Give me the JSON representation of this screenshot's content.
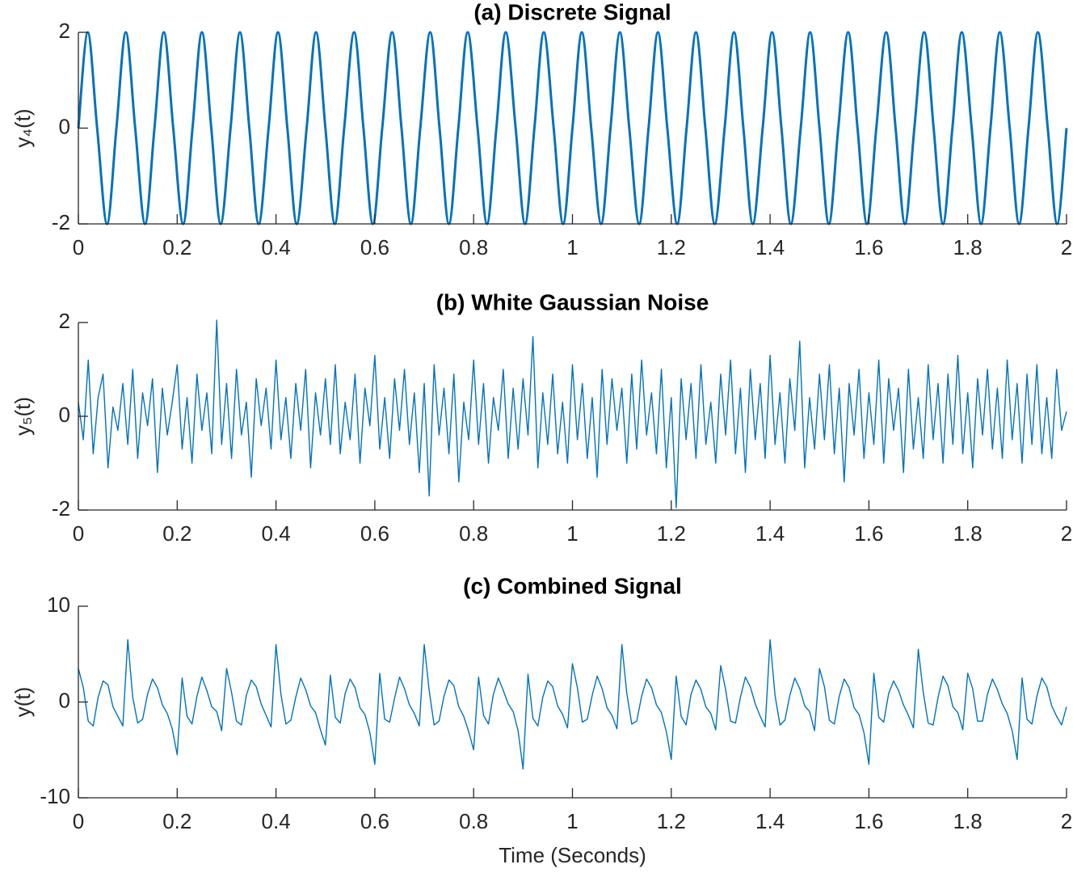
{
  "chart_data": [
    {
      "type": "line",
      "title": "(a) Discrete Signal",
      "ylabel": "y₄(t)",
      "color": "#0072bd",
      "line_shape": "spline",
      "xlim": [
        0,
        2
      ],
      "xticks": [
        0,
        0.2,
        0.4,
        0.6,
        0.8,
        1,
        1.2,
        1.4,
        1.6,
        1.8,
        2
      ],
      "ylim": [
        -2,
        2
      ],
      "yticks": [
        -2,
        0,
        2
      ],
      "x": [
        0,
        0.019,
        0.038,
        0.058,
        0.077,
        0.096,
        0.115,
        0.135,
        0.154,
        0.173,
        0.192,
        0.212,
        0.231,
        0.25,
        0.269,
        0.288,
        0.308,
        0.327,
        0.346,
        0.365,
        0.385,
        0.404,
        0.423,
        0.442,
        0.462,
        0.481,
        0.5,
        0.519,
        0.538,
        0.558,
        0.577,
        0.596,
        0.615,
        0.635,
        0.654,
        0.673,
        0.692,
        0.712,
        0.731,
        0.75,
        0.769,
        0.788,
        0.808,
        0.827,
        0.846,
        0.865,
        0.885,
        0.904,
        0.923,
        0.942,
        0.962,
        0.981,
        1,
        1.019,
        1.038,
        1.058,
        1.077,
        1.096,
        1.115,
        1.135,
        1.154,
        1.173,
        1.192,
        1.212,
        1.231,
        1.25,
        1.269,
        1.288,
        1.308,
        1.327,
        1.346,
        1.365,
        1.385,
        1.404,
        1.423,
        1.442,
        1.462,
        1.481,
        1.5,
        1.519,
        1.538,
        1.558,
        1.577,
        1.596,
        1.615,
        1.635,
        1.654,
        1.673,
        1.692,
        1.712,
        1.731,
        1.75,
        1.769,
        1.788,
        1.808,
        1.827,
        1.846,
        1.865,
        1.885,
        1.904,
        1.923,
        1.942,
        1.962,
        1.981,
        2
      ],
      "values": [
        0,
        2,
        0,
        -2,
        0,
        2,
        0,
        -2,
        0,
        2,
        0,
        -2,
        0,
        2,
        0,
        -2,
        0,
        2,
        0,
        -2,
        0,
        2,
        0,
        -2,
        0,
        2,
        0,
        -2,
        0,
        2,
        0,
        -2,
        0,
        2,
        0,
        -2,
        0,
        2,
        0,
        -2,
        0,
        2,
        0,
        -2,
        0,
        2,
        0,
        -2,
        0,
        2,
        0,
        -2,
        0,
        2,
        0,
        -2,
        0,
        2,
        0,
        -2,
        0,
        2,
        0,
        -2,
        0,
        2,
        0,
        -2,
        0,
        2,
        0,
        -2,
        0,
        2,
        0,
        -2,
        0,
        2,
        0,
        -2,
        0,
        2,
        0,
        -2,
        0,
        2,
        0,
        -2,
        0,
        2,
        0,
        -2,
        0,
        2,
        0,
        -2,
        0,
        2,
        0,
        -2,
        0,
        2,
        0,
        -2,
        0
      ]
    },
    {
      "type": "line",
      "title": "(b) White Gaussian Noise",
      "ylabel": "y₅(t)",
      "color": "#0072bd",
      "line_shape": "linear",
      "xlim": [
        0,
        2
      ],
      "xticks": [
        0,
        0.2,
        0.4,
        0.6,
        0.8,
        1,
        1.2,
        1.4,
        1.6,
        1.8,
        2
      ],
      "ylim": [
        -2,
        2
      ],
      "yticks": [
        -2,
        0,
        2
      ],
      "x": [
        0,
        0.01,
        0.02,
        0.03,
        0.04,
        0.05,
        0.06,
        0.07,
        0.08,
        0.09,
        0.1,
        0.11,
        0.12,
        0.13,
        0.14,
        0.15,
        0.16,
        0.17,
        0.18,
        0.19,
        0.2,
        0.21,
        0.22,
        0.23,
        0.24,
        0.25,
        0.26,
        0.27,
        0.28,
        0.29,
        0.3,
        0.31,
        0.32,
        0.33,
        0.34,
        0.35,
        0.36,
        0.37,
        0.38,
        0.39,
        0.4,
        0.41,
        0.42,
        0.43,
        0.44,
        0.45,
        0.46,
        0.47,
        0.48,
        0.49,
        0.5,
        0.51,
        0.52,
        0.53,
        0.54,
        0.55,
        0.56,
        0.57,
        0.58,
        0.59,
        0.6,
        0.61,
        0.62,
        0.63,
        0.64,
        0.65,
        0.66,
        0.67,
        0.68,
        0.69,
        0.7,
        0.71,
        0.72,
        0.73,
        0.74,
        0.75,
        0.76,
        0.77,
        0.78,
        0.79,
        0.8,
        0.81,
        0.82,
        0.83,
        0.84,
        0.85,
        0.86,
        0.87,
        0.88,
        0.89,
        0.9,
        0.91,
        0.92,
        0.93,
        0.94,
        0.95,
        0.96,
        0.97,
        0.98,
        0.99,
        1,
        1.01,
        1.02,
        1.03,
        1.04,
        1.05,
        1.06,
        1.07,
        1.08,
        1.09,
        1.1,
        1.11,
        1.12,
        1.13,
        1.14,
        1.15,
        1.16,
        1.17,
        1.18,
        1.19,
        1.2,
        1.21,
        1.22,
        1.23,
        1.24,
        1.25,
        1.26,
        1.27,
        1.28,
        1.29,
        1.3,
        1.31,
        1.32,
        1.33,
        1.34,
        1.35,
        1.36,
        1.37,
        1.38,
        1.39,
        1.4,
        1.41,
        1.42,
        1.43,
        1.44,
        1.45,
        1.46,
        1.47,
        1.48,
        1.49,
        1.5,
        1.51,
        1.52,
        1.53,
        1.54,
        1.55,
        1.56,
        1.57,
        1.58,
        1.59,
        1.6,
        1.61,
        1.62,
        1.63,
        1.64,
        1.65,
        1.66,
        1.67,
        1.68,
        1.69,
        1.7,
        1.71,
        1.72,
        1.73,
        1.74,
        1.75,
        1.76,
        1.77,
        1.78,
        1.79,
        1.8,
        1.81,
        1.82,
        1.83,
        1.84,
        1.85,
        1.86,
        1.87,
        1.88,
        1.89,
        1.9,
        1.91,
        1.92,
        1.93,
        1.94,
        1.95,
        1.96,
        1.97,
        1.98,
        1.99,
        2
      ],
      "values": [
        0.3,
        -0.5,
        1.2,
        -0.8,
        0.4,
        0.9,
        -1.1,
        0.2,
        -0.3,
        0.7,
        -0.6,
        1.0,
        -0.9,
        0.5,
        -0.2,
        0.8,
        -1.2,
        0.6,
        -0.4,
        0.3,
        1.1,
        -0.7,
        0.4,
        -1.0,
        0.9,
        -0.3,
        0.5,
        -0.8,
        2.05,
        -0.6,
        0.7,
        -0.9,
        1.0,
        -0.4,
        0.3,
        -1.3,
        0.8,
        -0.2,
        0.6,
        -0.7,
        1.2,
        -0.5,
        0.4,
        -0.9,
        0.7,
        -0.3,
        1.0,
        -1.1,
        0.5,
        -0.4,
        0.8,
        -0.6,
        1.1,
        -0.8,
        0.3,
        -0.5,
        0.9,
        -1.0,
        0.6,
        -0.2,
        1.3,
        -0.7,
        0.4,
        -0.9,
        0.8,
        -0.3,
        1.0,
        -0.6,
        0.5,
        -1.2,
        0.7,
        -1.7,
        1.1,
        -0.4,
        0.6,
        -0.8,
        0.9,
        -1.4,
        0.3,
        -0.5,
        1.2,
        -0.6,
        0.7,
        -1.0,
        0.4,
        -0.3,
        1.0,
        -0.9,
        0.6,
        -0.7,
        0.8,
        -0.4,
        1.7,
        -1.1,
        0.5,
        -0.6,
        0.9,
        -0.8,
        0.3,
        -1.0,
        1.1,
        -0.5,
        0.7,
        -0.9,
        0.4,
        -1.3,
        1.0,
        -0.6,
        0.8,
        -0.3,
        0.6,
        -1.0,
        0.9,
        -0.7,
        1.2,
        -0.4,
        0.5,
        -0.8,
        1.0,
        -1.1,
        0.4,
        -1.95,
        0.8,
        -0.5,
        0.7,
        -0.9,
        1.1,
        -0.6,
        0.3,
        -1.0,
        0.9,
        -0.4,
        1.2,
        -0.8,
        0.6,
        -1.2,
        1.0,
        -0.5,
        0.7,
        -0.9,
        1.3,
        -0.6,
        0.5,
        -1.0,
        0.8,
        -0.3,
        1.6,
        -1.1,
        0.4,
        -0.7,
        0.9,
        -0.5,
        1.1,
        -0.8,
        0.6,
        -1.4,
        0.7,
        -0.4,
        1.0,
        -0.9,
        0.5,
        -0.6,
        1.2,
        -1.0,
        0.8,
        -0.3,
        0.6,
        -1.2,
        1.0,
        -0.7,
        0.4,
        -0.9,
        1.1,
        -0.5,
        0.7,
        -1.0,
        0.9,
        -0.6,
        1.3,
        -0.8,
        0.5,
        -1.1,
        0.8,
        -0.4,
        1.0,
        -0.7,
        0.6,
        -0.9,
        1.2,
        -0.5,
        0.7,
        -1.0,
        0.9,
        -0.6,
        1.1,
        -0.8,
        0.4,
        -0.9,
        1.0,
        -0.3,
        0.1
      ]
    },
    {
      "type": "line",
      "title": "(c) Combined Signal",
      "ylabel": "y(t)",
      "xlabel": "Time (Seconds)",
      "color": "#0072bd",
      "line_shape": "linear",
      "xlim": [
        0,
        2
      ],
      "xticks": [
        0,
        0.2,
        0.4,
        0.6,
        0.8,
        1,
        1.2,
        1.4,
        1.6,
        1.8,
        2
      ],
      "ylim": [
        -10,
        10
      ],
      "yticks": [
        -10,
        0,
        10
      ],
      "x": [
        0,
        0.01,
        0.02,
        0.03,
        0.04,
        0.05,
        0.06,
        0.07,
        0.08,
        0.09,
        0.1,
        0.11,
        0.12,
        0.13,
        0.14,
        0.15,
        0.16,
        0.17,
        0.18,
        0.19,
        0.2,
        0.21,
        0.22,
        0.23,
        0.24,
        0.25,
        0.26,
        0.27,
        0.28,
        0.29,
        0.3,
        0.31,
        0.32,
        0.33,
        0.34,
        0.35,
        0.36,
        0.37,
        0.38,
        0.39,
        0.4,
        0.41,
        0.42,
        0.43,
        0.44,
        0.45,
        0.46,
        0.47,
        0.48,
        0.49,
        0.5,
        0.51,
        0.52,
        0.53,
        0.54,
        0.55,
        0.56,
        0.57,
        0.58,
        0.59,
        0.6,
        0.61,
        0.62,
        0.63,
        0.64,
        0.65,
        0.66,
        0.67,
        0.68,
        0.69,
        0.7,
        0.71,
        0.72,
        0.73,
        0.74,
        0.75,
        0.76,
        0.77,
        0.78,
        0.79,
        0.8,
        0.81,
        0.82,
        0.83,
        0.84,
        0.85,
        0.86,
        0.87,
        0.88,
        0.89,
        0.9,
        0.91,
        0.92,
        0.93,
        0.94,
        0.95,
        0.96,
        0.97,
        0.98,
        0.99,
        1,
        1.01,
        1.02,
        1.03,
        1.04,
        1.05,
        1.06,
        1.07,
        1.08,
        1.09,
        1.1,
        1.11,
        1.12,
        1.13,
        1.14,
        1.15,
        1.16,
        1.17,
        1.18,
        1.19,
        1.2,
        1.21,
        1.22,
        1.23,
        1.24,
        1.25,
        1.26,
        1.27,
        1.28,
        1.29,
        1.3,
        1.31,
        1.32,
        1.33,
        1.34,
        1.35,
        1.36,
        1.37,
        1.38,
        1.39,
        1.4,
        1.41,
        1.42,
        1.43,
        1.44,
        1.45,
        1.46,
        1.47,
        1.48,
        1.49,
        1.5,
        1.51,
        1.52,
        1.53,
        1.54,
        1.55,
        1.56,
        1.57,
        1.58,
        1.59,
        1.6,
        1.61,
        1.62,
        1.63,
        1.64,
        1.65,
        1.66,
        1.67,
        1.68,
        1.69,
        1.7,
        1.71,
        1.72,
        1.73,
        1.74,
        1.75,
        1.76,
        1.77,
        1.78,
        1.79,
        1.8,
        1.81,
        1.82,
        1.83,
        1.84,
        1.85,
        1.86,
        1.87,
        1.88,
        1.89,
        1.9,
        1.91,
        1.92,
        1.93,
        1.94,
        1.95,
        1.96,
        1.97,
        1.98,
        1.99,
        2
      ],
      "values": [
        3.5,
        1.5,
        -2,
        -2.5,
        0.5,
        2.2,
        1.8,
        -0.5,
        -1.5,
        -2.5,
        6.5,
        0.5,
        -2.2,
        -1.8,
        0.8,
        2.4,
        1.5,
        -0.3,
        -1.2,
        -2.8,
        -5.5,
        2.5,
        -1.5,
        -2.3,
        0.6,
        2.6,
        1.2,
        -0.5,
        -1.0,
        -3.0,
        3.5,
        1.0,
        -2.0,
        -2.4,
        0.7,
        2.3,
        1.6,
        -0.2,
        -1.4,
        -2.6,
        6.0,
        0.8,
        -2.3,
        -1.9,
        0.5,
        2.5,
        1.3,
        -0.4,
        -1.1,
        -2.9,
        -4.5,
        2.8,
        -1.6,
        -2.2,
        0.9,
        2.4,
        1.5,
        -0.6,
        -1.3,
        -3.2,
        -6.5,
        3.0,
        -1.8,
        -2.1,
        0.4,
        2.6,
        1.4,
        -0.3,
        -1.2,
        -2.5,
        6.0,
        1.2,
        -2.4,
        -2.0,
        0.6,
        2.3,
        1.7,
        -0.5,
        -1.5,
        -3.1,
        -5.0,
        2.6,
        -1.4,
        -2.3,
        0.8,
        2.5,
        1.2,
        -0.2,
        -1.0,
        -3.0,
        -7.0,
        2.9,
        -1.7,
        -2.5,
        0.5,
        2.2,
        1.6,
        -0.4,
        -1.3,
        -2.7,
        4.0,
        1.5,
        -2.1,
        -1.8,
        0.7,
        2.7,
        1.4,
        -0.6,
        -1.4,
        -2.8,
        6.0,
        0.9,
        -2.3,
        -2.0,
        0.6,
        2.4,
        1.5,
        -0.3,
        -1.1,
        -3.1,
        -6.0,
        2.7,
        -1.5,
        -2.4,
        0.8,
        2.3,
        1.3,
        -0.5,
        -1.2,
        -2.9,
        3.8,
        1.3,
        -2.0,
        -2.2,
        0.5,
        2.6,
        1.6,
        -0.2,
        -1.5,
        -2.6,
        6.5,
        0.7,
        -2.4,
        -1.9,
        0.7,
        2.5,
        1.4,
        -0.4,
        -1.0,
        -3.0,
        3.5,
        1.6,
        -1.9,
        -2.3,
        0.6,
        2.4,
        1.5,
        -0.6,
        -1.3,
        -3.2,
        -6.5,
        3.0,
        -1.6,
        -2.1,
        0.9,
        2.2,
        1.2,
        -0.3,
        -1.4,
        -2.7,
        5.5,
        1.0,
        -2.2,
        -2.4,
        0.5,
        2.7,
        1.7,
        -0.5,
        -1.1,
        -2.9,
        3.0,
        1.4,
        -2.0,
        -2.0,
        0.8,
        2.4,
        1.3,
        -0.2,
        -1.2,
        -3.0,
        -6.0,
        2.5,
        -1.8,
        -2.3,
        0.6,
        2.5,
        1.6,
        -0.4,
        -1.5,
        -2.4,
        -0.5
      ]
    }
  ]
}
